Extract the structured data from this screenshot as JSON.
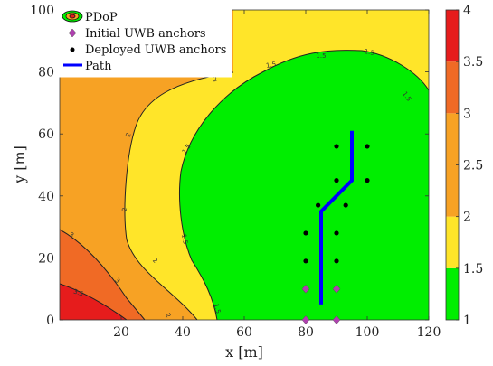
{
  "chart_data": {
    "type": "contour",
    "xlabel": "x [m]",
    "ylabel": "y [m]",
    "xlim": [
      0,
      120
    ],
    "ylim": [
      0,
      100
    ],
    "xticks": [
      20,
      40,
      60,
      80,
      100,
      120
    ],
    "yticks": [
      0,
      20,
      40,
      60,
      80,
      100
    ],
    "colorbar": {
      "ticks": [
        1,
        1.5,
        2,
        2.5,
        3,
        3.5,
        4
      ],
      "tick_labels": [
        "1",
        "1.5",
        "2",
        "2.5",
        "3",
        "3.5",
        "4"
      ],
      "levels": [
        {
          "from": 1,
          "to": 1.5,
          "color": "#00ee00"
        },
        {
          "from": 1.5,
          "to": 2,
          "color": "#ffe529"
        },
        {
          "from": 2,
          "to": 3,
          "color": "#f7a224"
        },
        {
          "from": 3,
          "to": 3.5,
          "color": "#f06a25"
        },
        {
          "from": 3.5,
          "to": 4,
          "color": "#e61c1c"
        }
      ]
    },
    "contour_labels": [
      "1.5",
      "1.5",
      "1.5",
      "1.5",
      "1.5",
      "1.5",
      "1.5",
      "1.5",
      "2",
      "2",
      "2",
      "2",
      "2",
      "3",
      "3",
      "3.5"
    ],
    "legend": {
      "position": "top-left",
      "items": [
        "PDoP",
        "Initial UWB anchors",
        "Deployed UWB anchors",
        "Path"
      ]
    },
    "initial_anchors": [
      [
        80,
        0
      ],
      [
        90,
        0
      ],
      [
        80,
        10
      ],
      [
        90,
        10
      ]
    ],
    "deployed_anchors": [
      [
        80,
        19
      ],
      [
        90,
        19
      ],
      [
        80,
        28
      ],
      [
        90,
        28
      ],
      [
        84,
        37
      ],
      [
        93,
        37
      ],
      [
        90,
        45
      ],
      [
        100,
        45
      ],
      [
        90,
        56
      ],
      [
        100,
        56
      ]
    ],
    "path": [
      [
        85,
        5
      ],
      [
        85,
        35
      ],
      [
        95,
        45
      ],
      [
        95,
        61
      ]
    ],
    "colors": {
      "initial_anchor": "#b040b0",
      "deployed_anchor": "#000000",
      "path": "#0000ff"
    }
  }
}
